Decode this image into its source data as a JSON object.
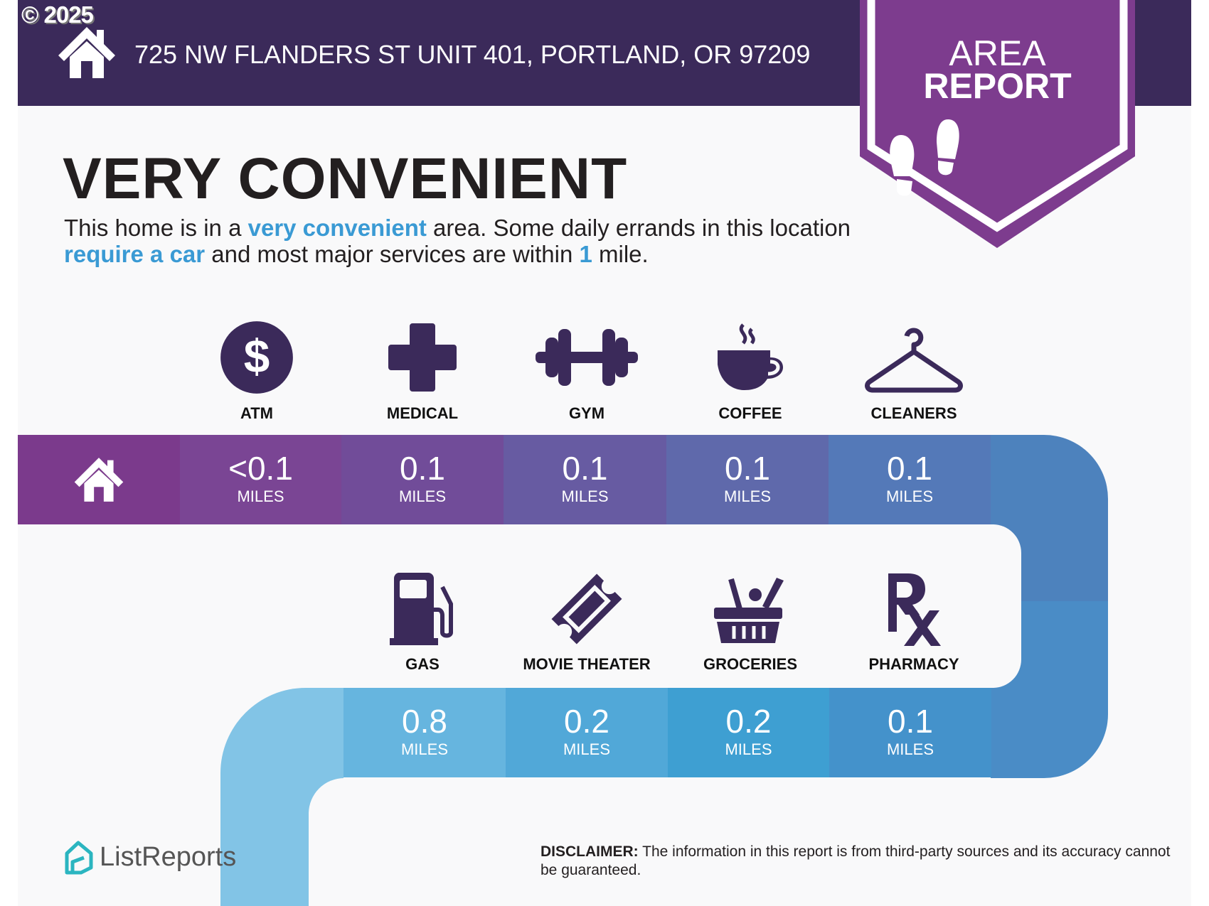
{
  "copyright": "© 2025",
  "header": {
    "address": "725 NW FLANDERS ST UNIT 401, PORTLAND, OR 97209"
  },
  "badge": {
    "line1": "AREA",
    "line2": "REPORT",
    "icon": "footprints-icon"
  },
  "title": "VERY CONVENIENT",
  "summary": {
    "p1": "This home is in a ",
    "h1": "very convenient",
    "p2": " area. Some daily errands in this location ",
    "h2": "require a car",
    "p3": " and most major services are within ",
    "h3": "1",
    "p4": " mile."
  },
  "row1": [
    {
      "label": "ATM",
      "value": "<0.1",
      "unit": "MILES",
      "icon": "dollar-icon",
      "color": "#7a4594"
    },
    {
      "label": "MEDICAL",
      "value": "0.1",
      "unit": "MILES",
      "icon": "medical-cross-icon",
      "color": "#714c99"
    },
    {
      "label": "GYM",
      "value": "0.1",
      "unit": "MILES",
      "icon": "dumbbell-icon",
      "color": "#675ba2"
    },
    {
      "label": "COFFEE",
      "value": "0.1",
      "unit": "MILES",
      "icon": "coffee-cup-icon",
      "color": "#5f69ab"
    },
    {
      "label": "CLEANERS",
      "value": "0.1",
      "unit": "MILES",
      "icon": "hanger-icon",
      "color": "#5479b8"
    }
  ],
  "row2": [
    {
      "label": "GAS",
      "value": "0.8",
      "unit": "MILES",
      "icon": "gas-pump-icon",
      "color": "#66b5df"
    },
    {
      "label": "MOVIE THEATER",
      "value": "0.2",
      "unit": "MILES",
      "icon": "ticket-icon",
      "color": "#51a8d8"
    },
    {
      "label": "GROCERIES",
      "value": "0.2",
      "unit": "MILES",
      "icon": "grocery-basket-icon",
      "color": "#3e9fd2"
    },
    {
      "label": "PHARMACY",
      "value": "0.1",
      "unit": "MILES",
      "icon": "rx-icon",
      "color": "#4492cb"
    }
  ],
  "colors": {
    "header": "#3b2a5a",
    "badge": "#7d3c8e",
    "accent": "#3a9ad4",
    "icon": "#3b2a5a",
    "home_cell": "#7b3a8c"
  },
  "footer": {
    "logo": "ListReports",
    "disclaimer_label": "DISCLAIMER:",
    "disclaimer_text": " The information in this report is from third-party sources and its accuracy cannot be guaranteed."
  }
}
